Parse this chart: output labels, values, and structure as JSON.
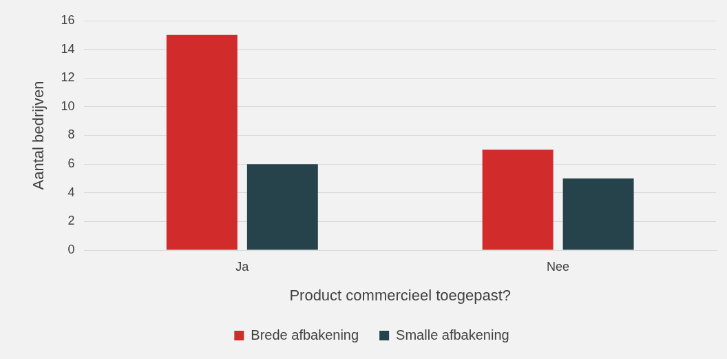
{
  "chart_data": {
    "type": "bar",
    "xlabel": "Product commercieel toegepast?",
    "ylabel": "Aantal bedrijven",
    "categories": [
      "Ja",
      "Nee"
    ],
    "series": [
      {
        "name": "Brede afbakening",
        "color": "#d12b2b",
        "values": [
          15,
          7
        ]
      },
      {
        "name": "Smalle afbakening",
        "color": "#26424a",
        "values": [
          6,
          5
        ]
      }
    ],
    "ylim": [
      0,
      16
    ],
    "yticks": [
      0,
      2,
      4,
      6,
      8,
      10,
      12,
      14,
      16
    ],
    "grid": "y",
    "legend": "bottom"
  }
}
